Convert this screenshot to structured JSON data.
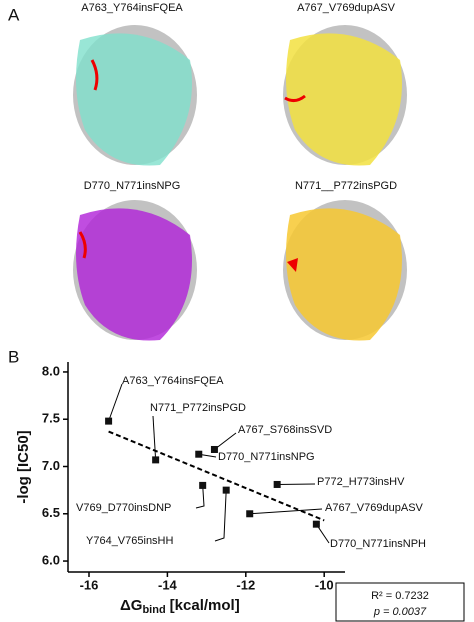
{
  "panel_a": {
    "label": "A",
    "structures": [
      "A763_Y764insFQEA",
      "A767_V769dupASV",
      "D770_N771insNPG",
      "N771__P772insPGD"
    ]
  },
  "chart_data": {
    "type": "scatter",
    "panel_label": "B",
    "ylabel": "-log [IC50]",
    "xlabel": {
      "main": "ΔG",
      "sub": "bind",
      "unit": "[kcal/mol]"
    },
    "xlim": [
      -16.5,
      -9.5
    ],
    "xticks": [
      -16,
      -14,
      -12,
      -10
    ],
    "ylim": [
      5.9,
      8.1
    ],
    "yticks": [
      {
        "value": 6,
        "label": "6.0"
      },
      6.5,
      {
        "value": 7,
        "label": "7.0"
      },
      7.5,
      {
        "value": 8,
        "label": "8.0"
      }
    ],
    "color": "#111111",
    "labels": [
      "A763_Y764insFQEA",
      "N771_P772insPGD",
      "A767_S768insSVD",
      "D770_N771insNPG",
      "V769_D770insDNP",
      "Y764_V765insHH",
      "P772_H773insHV",
      "A767_V769dupASV",
      "D770_N771insNPH"
    ],
    "x": [
      -15.5,
      -14.3,
      -12.8,
      -13.2,
      -13.1,
      -12.5,
      -11.2,
      -11.9,
      -10.2
    ],
    "y": [
      7.48,
      7.07,
      7.18,
      7.13,
      6.8,
      6.75,
      6.81,
      6.5,
      6.39
    ],
    "trendline": {
      "x": [
        -15.5,
        -10.0
      ],
      "y": [
        7.37,
        6.43
      ]
    },
    "annotations": [
      "R² = 0.7232",
      "p = 0.0037"
    ]
  }
}
